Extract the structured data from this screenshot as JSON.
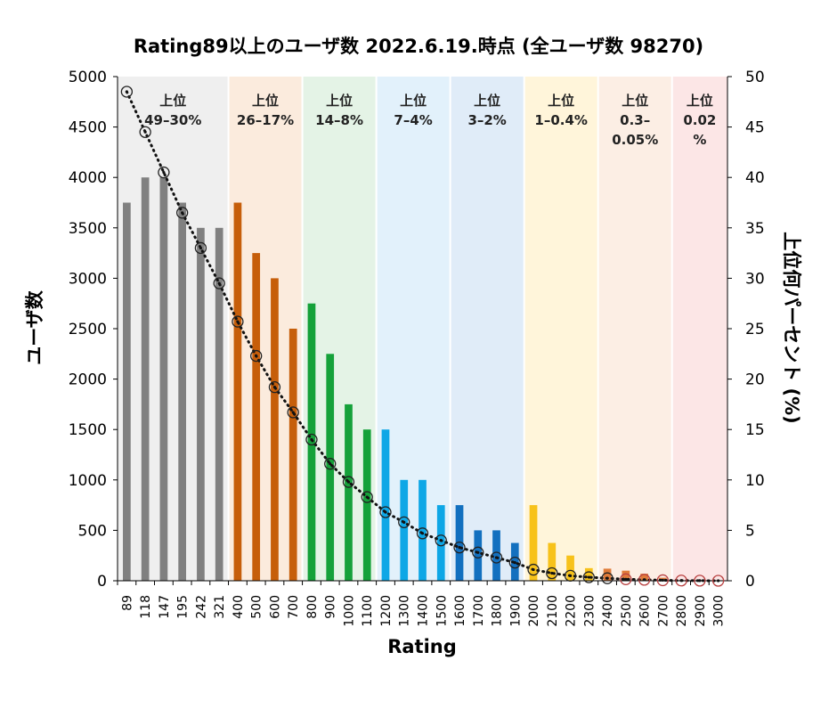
{
  "chart_data": {
    "type": "bar",
    "title": "Rating89以上のユーザ数 2022.6.19.時点 (全ユーザ数 98270)",
    "xlabel": "Rating",
    "ylabel": "ユーザ数",
    "y2label": "上位何パーセント (%)",
    "ylim": [
      0,
      5000
    ],
    "y2lim": [
      0,
      50
    ],
    "yticks": [
      "0",
      "500",
      "1000",
      "1500",
      "2000",
      "2500",
      "3000",
      "3500",
      "4000",
      "4500",
      "5000"
    ],
    "y2ticks": [
      "0",
      "5",
      "10",
      "15",
      "20",
      "25",
      "30",
      "35",
      "40",
      "45",
      "50"
    ],
    "categories": [
      "89",
      "118",
      "147",
      "195",
      "242",
      "321",
      "400",
      "500",
      "600",
      "700",
      "800",
      "900",
      "1000",
      "1100",
      "1200",
      "1300",
      "1400",
      "1500",
      "1600",
      "1700",
      "1800",
      "1900",
      "2000",
      "2100",
      "2200",
      "2300",
      "2400",
      "2500",
      "2600",
      "2700",
      "2800",
      "2900",
      "3000"
    ],
    "series": [
      {
        "type": "bar",
        "axis": "left",
        "values": [
          3750,
          4000,
          4000,
          3750,
          3500,
          3500,
          3750,
          3250,
          3000,
          2500,
          2750,
          2250,
          1750,
          1500,
          1500,
          1000,
          1000,
          750,
          750,
          500,
          500,
          375,
          750,
          375,
          250,
          125,
          120,
          100,
          70,
          30,
          5,
          3,
          1
        ],
        "colors": [
          "#808080",
          "#808080",
          "#808080",
          "#808080",
          "#808080",
          "#808080",
          "#C65E0A",
          "#C65E0A",
          "#C65E0A",
          "#C65E0A",
          "#15A13A",
          "#15A13A",
          "#15A13A",
          "#15A13A",
          "#0EA7E6",
          "#0EA7E6",
          "#0EA7E6",
          "#0EA7E6",
          "#1370BF",
          "#1370BF",
          "#1370BF",
          "#1370BF",
          "#F7C21A",
          "#F7C21A",
          "#F7C21A",
          "#F7C21A",
          "#E07B3A",
          "#E07B3A",
          "#E07B3A",
          "#E07B3A",
          "#F08080",
          "#F08080",
          "#F08080"
        ]
      },
      {
        "type": "line",
        "axis": "right",
        "style": "dotted-with-markers",
        "values": [
          48.5,
          44.5,
          40.5,
          36.5,
          33.0,
          29.5,
          25.7,
          22.3,
          19.2,
          16.7,
          14.0,
          11.6,
          9.8,
          8.3,
          6.8,
          5.8,
          4.7,
          4.0,
          3.3,
          2.8,
          2.3,
          1.8,
          1.1,
          0.75,
          0.5,
          0.35,
          0.25,
          0.15,
          0.1,
          0.05,
          0.02,
          0.01,
          0.0
        ]
      }
    ],
    "bands": [
      {
        "label": [
          "上位",
          "49–30%"
        ],
        "color": "#EFEFEF",
        "from": 0,
        "to": 5
      },
      {
        "label": [
          "上位",
          "26–17%"
        ],
        "color": "#FBEBDD",
        "from": 6,
        "to": 9
      },
      {
        "label": [
          "上位",
          "14–8%"
        ],
        "color": "#E4F3E6",
        "from": 10,
        "to": 13
      },
      {
        "label": [
          "上位",
          "7–4%"
        ],
        "color": "#E2F1FB",
        "from": 14,
        "to": 17
      },
      {
        "label": [
          "上位",
          "3–2%"
        ],
        "color": "#E0ECF8",
        "from": 18,
        "to": 21
      },
      {
        "label": [
          "上位",
          "1–0.4%"
        ],
        "color": "#FFF5DA",
        "from": 22,
        "to": 25
      },
      {
        "label": [
          "上位",
          "0.3–",
          "0.05%"
        ],
        "color": "#FCEEE4",
        "from": 26,
        "to": 29
      },
      {
        "label": [
          "上位",
          "0.02",
          "%"
        ],
        "color": "#FCE6E6",
        "from": 30,
        "to": 32
      }
    ],
    "grid": false,
    "legend": "none"
  }
}
